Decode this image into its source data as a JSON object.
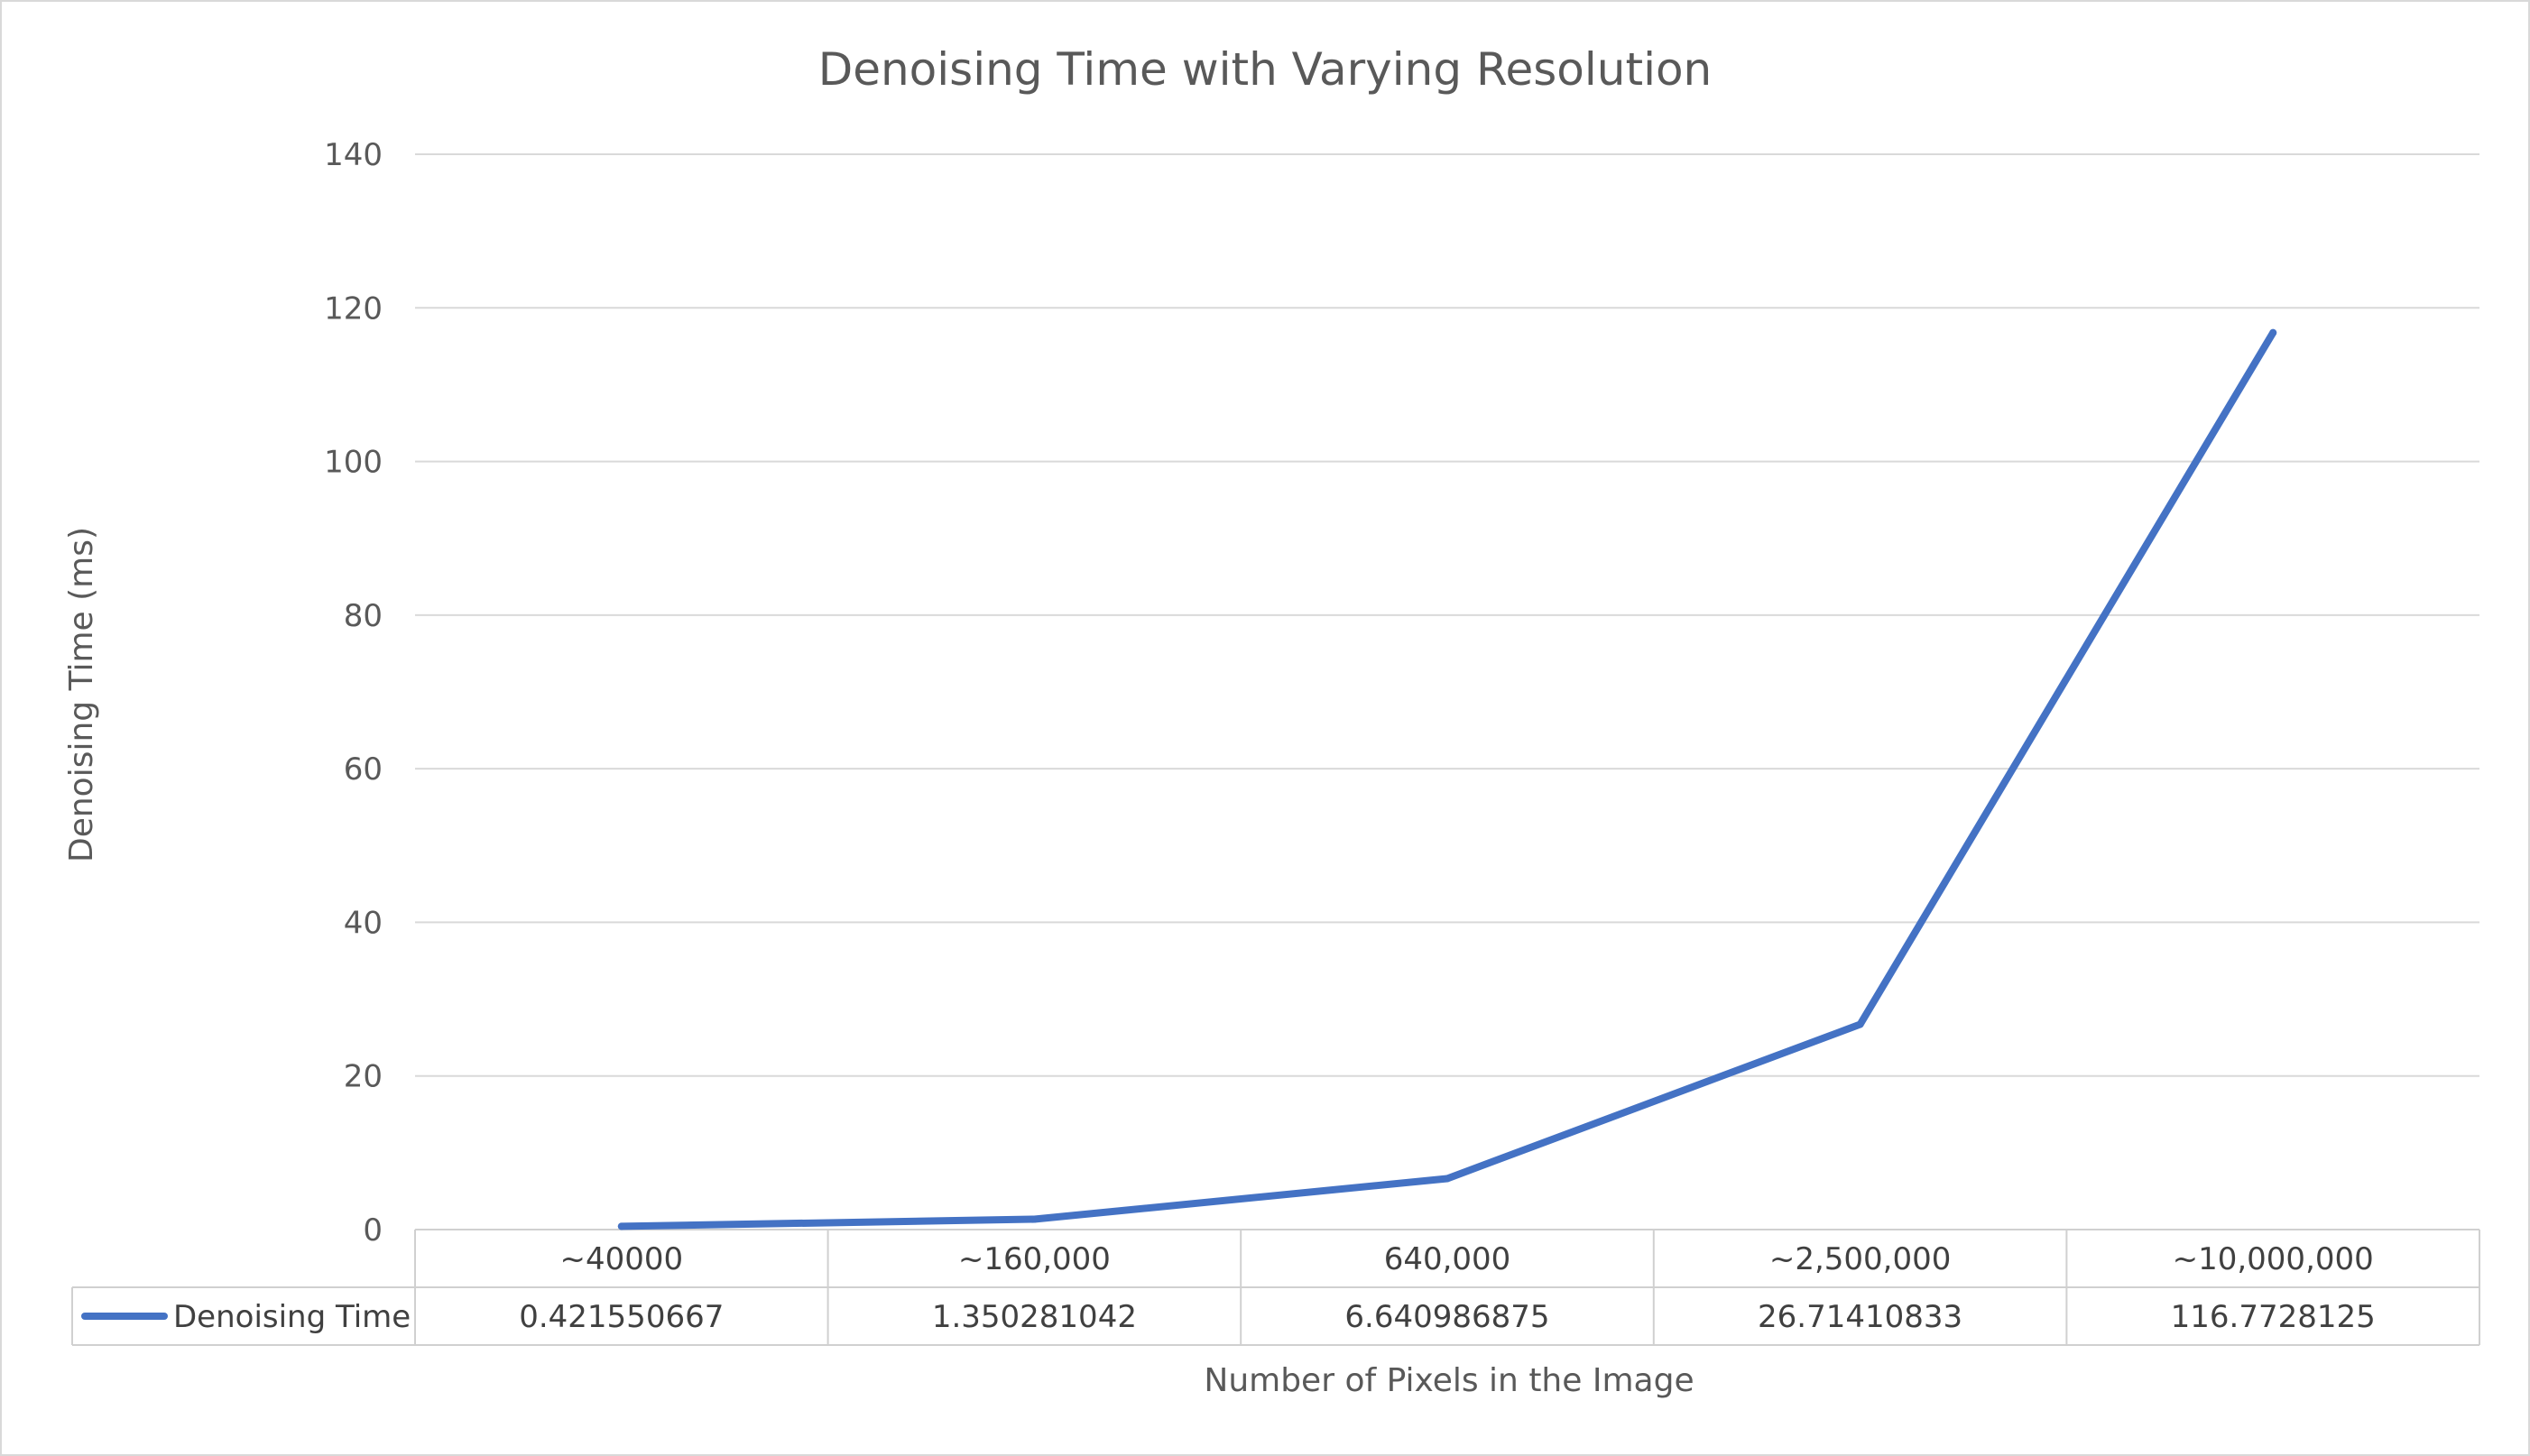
{
  "chart_data": {
    "type": "line",
    "title": "Denoising Time with Varying Resolution",
    "xlabel": "Number of Pixels in the Image",
    "ylabel": "Denoising Time (ms)",
    "categories": [
      "~40000",
      "~160,000",
      "640,000",
      "~2,500,000",
      "~10,000,000"
    ],
    "ylim": [
      0,
      140
    ],
    "yticks": [
      0,
      20,
      40,
      60,
      80,
      100,
      120,
      140
    ],
    "grid": true,
    "legend": "data-table",
    "series": [
      {
        "name": "Denoising Time",
        "values": [
          0.421550667,
          1.350281042,
          6.640986875,
          26.71410833,
          116.7728125
        ],
        "value_labels": [
          "0.421550667",
          "1.350281042",
          "6.640986875",
          "26.71410833",
          "116.7728125"
        ],
        "color": "#4472c4"
      }
    ]
  }
}
